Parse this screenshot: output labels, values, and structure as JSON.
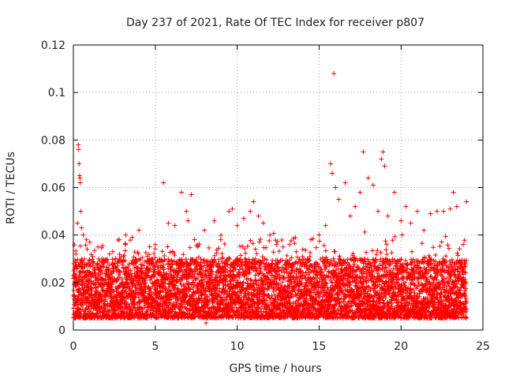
{
  "chart_data": {
    "type": "scatter",
    "title": "Day 237 of 2021, Rate Of TEC Index for receiver p807",
    "xlabel": "GPS time / hours",
    "ylabel": "ROTI / TECUs",
    "xlim": [
      0,
      25
    ],
    "ylim": [
      0,
      0.12
    ],
    "x_ticks": [
      0,
      5,
      10,
      15,
      20,
      25
    ],
    "x_tick_labels": [
      "0",
      "5",
      "10",
      "15",
      "20",
      "25"
    ],
    "y_ticks": [
      0,
      0.02,
      0.04,
      0.06,
      0.08,
      0.1,
      0.12
    ],
    "y_tick_labels": [
      "0",
      "0.02",
      "0.04",
      "0.06",
      "0.08",
      "0.1",
      "0.12"
    ],
    "grid": true,
    "marker": "+",
    "marker_color": "#ff0000",
    "series": [
      {
        "name": "",
        "points": [
          [
            0.05,
            0.013
          ],
          [
            0.15,
            0.032
          ],
          [
            0.25,
            0.045
          ],
          [
            0.3,
            0.078
          ],
          [
            0.32,
            0.076
          ],
          [
            0.35,
            0.07
          ],
          [
            0.38,
            0.065
          ],
          [
            0.4,
            0.064
          ],
          [
            0.42,
            0.062
          ],
          [
            0.45,
            0.05
          ],
          [
            0.5,
            0.043
          ],
          [
            0.6,
            0.04
          ],
          [
            0.8,
            0.038
          ],
          [
            1.0,
            0.037
          ],
          [
            1.2,
            0.028
          ],
          [
            1.5,
            0.035
          ],
          [
            2.0,
            0.02
          ],
          [
            2.4,
            0.033
          ],
          [
            2.8,
            0.038
          ],
          [
            3.2,
            0.04
          ],
          [
            3.6,
            0.039
          ],
          [
            4.0,
            0.042
          ],
          [
            4.5,
            0.031
          ],
          [
            5.0,
            0.036
          ],
          [
            5.5,
            0.062
          ],
          [
            5.8,
            0.045
          ],
          [
            6.2,
            0.044
          ],
          [
            6.6,
            0.058
          ],
          [
            6.9,
            0.05
          ],
          [
            7.0,
            0.046
          ],
          [
            7.2,
            0.057
          ],
          [
            7.6,
            0.035
          ],
          [
            8.0,
            0.042
          ],
          [
            8.1,
            0.003
          ],
          [
            8.2,
            0.005
          ],
          [
            8.6,
            0.046
          ],
          [
            9.0,
            0.038
          ],
          [
            9.5,
            0.05
          ],
          [
            9.7,
            0.051
          ],
          [
            10.0,
            0.044
          ],
          [
            10.4,
            0.047
          ],
          [
            10.8,
            0.05
          ],
          [
            11.0,
            0.054
          ],
          [
            11.3,
            0.048
          ],
          [
            11.6,
            0.045
          ],
          [
            12.0,
            0.04
          ],
          [
            12.4,
            0.036
          ],
          [
            12.8,
            0.035
          ],
          [
            13.2,
            0.036
          ],
          [
            13.6,
            0.033
          ],
          [
            14.0,
            0.034
          ],
          [
            14.5,
            0.038
          ],
          [
            15.0,
            0.04
          ],
          [
            15.4,
            0.044
          ],
          [
            15.7,
            0.07
          ],
          [
            15.8,
            0.066
          ],
          [
            15.9,
            0.108
          ],
          [
            16.0,
            0.06
          ],
          [
            16.2,
            0.055
          ],
          [
            16.6,
            0.062
          ],
          [
            16.9,
            0.048
          ],
          [
            17.2,
            0.052
          ],
          [
            17.5,
            0.058
          ],
          [
            17.7,
            0.075
          ],
          [
            18.0,
            0.064
          ],
          [
            18.3,
            0.061
          ],
          [
            18.6,
            0.05
          ],
          [
            18.8,
            0.072
          ],
          [
            18.9,
            0.075
          ],
          [
            19.0,
            0.069
          ],
          [
            19.2,
            0.048
          ],
          [
            19.6,
            0.058
          ],
          [
            20.0,
            0.046
          ],
          [
            20.3,
            0.052
          ],
          [
            20.6,
            0.045
          ],
          [
            21.0,
            0.05
          ],
          [
            21.4,
            0.042
          ],
          [
            21.8,
            0.049
          ],
          [
            22.2,
            0.05
          ],
          [
            22.6,
            0.05
          ],
          [
            23.0,
            0.051
          ],
          [
            23.2,
            0.058
          ],
          [
            23.4,
            0.052
          ],
          [
            23.8,
            0.036
          ],
          [
            24.0,
            0.054
          ]
        ]
      }
    ],
    "background_band": {
      "description_values": "dense noise floor of ROTI readings from 0 to 24 hours",
      "ymin": 0.005,
      "ymax": 0.03
    }
  }
}
